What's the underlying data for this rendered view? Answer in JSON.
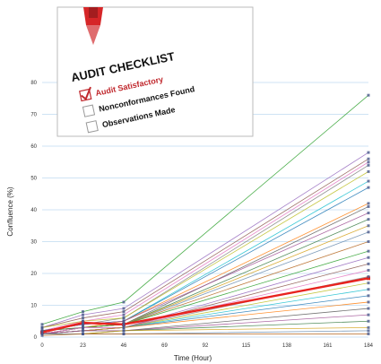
{
  "inset": {
    "title": "AUDIT CHECKLIST",
    "items": [
      {
        "label": "Audit Satisfactory",
        "checked": true,
        "color": "#c0282d"
      },
      {
        "label": "Nonconformances Found",
        "checked": false,
        "color": "#111111"
      },
      {
        "label": "Observations Made",
        "checked": false,
        "color": "#111111"
      }
    ]
  },
  "colors": {
    "highlight": "#e8231f",
    "grid": "#cfe3f4",
    "marker": "#4a5a8c",
    "pen": "#d62628"
  },
  "chart_data": {
    "type": "line",
    "xlabel": "Time (Hour)",
    "ylabel": "Confluence (%)",
    "xlim": [
      0,
      184
    ],
    "ylim": [
      0,
      80
    ],
    "xticks": [
      0,
      23,
      46,
      69,
      92,
      115,
      138,
      161,
      184
    ],
    "yticks": [
      0,
      10,
      20,
      30,
      40,
      50,
      60,
      70,
      80
    ],
    "grid": true,
    "x": [
      0,
      23,
      46,
      184
    ],
    "highlight_series": {
      "values": [
        1.5,
        4.5,
        4,
        18.5
      ]
    },
    "series": [
      {
        "values": [
          4,
          8,
          11,
          76
        ]
      },
      {
        "values": [
          3,
          7,
          9,
          58
        ]
      },
      {
        "values": [
          3,
          6,
          8,
          56
        ]
      },
      {
        "values": [
          2,
          5,
          7,
          55
        ]
      },
      {
        "values": [
          2,
          4,
          6,
          54
        ]
      },
      {
        "values": [
          3,
          5,
          6,
          52
        ]
      },
      {
        "values": [
          2,
          4,
          5,
          49
        ]
      },
      {
        "values": [
          2,
          4,
          5,
          47
        ]
      },
      {
        "values": [
          2,
          3,
          5,
          42
        ]
      },
      {
        "values": [
          2,
          3,
          4,
          41
        ]
      },
      {
        "values": [
          2,
          4,
          5,
          39
        ]
      },
      {
        "values": [
          2,
          3,
          4,
          37
        ]
      },
      {
        "values": [
          1,
          3,
          4,
          35
        ]
      },
      {
        "values": [
          1,
          3,
          4,
          33
        ]
      },
      {
        "values": [
          1,
          3,
          4,
          30
        ]
      },
      {
        "values": [
          1,
          3,
          4,
          27
        ]
      },
      {
        "values": [
          1,
          3,
          3,
          25
        ]
      },
      {
        "values": [
          1,
          2,
          3,
          23
        ]
      },
      {
        "values": [
          1,
          3,
          3,
          21
        ]
      },
      {
        "values": [
          1,
          2,
          3,
          19
        ]
      },
      {
        "values": [
          1,
          2,
          3,
          17
        ]
      },
      {
        "values": [
          1,
          2,
          3,
          15
        ]
      },
      {
        "values": [
          1,
          2,
          3,
          13
        ]
      },
      {
        "values": [
          1,
          2,
          3,
          11
        ]
      },
      {
        "values": [
          1,
          2,
          2,
          9
        ]
      },
      {
        "values": [
          1,
          2,
          2,
          7
        ]
      },
      {
        "values": [
          1,
          1,
          2,
          5
        ]
      },
      {
        "values": [
          1,
          1,
          2,
          3
        ]
      },
      {
        "values": [
          1,
          1,
          1,
          2
        ]
      },
      {
        "values": [
          0.5,
          1,
          1,
          1
        ]
      }
    ]
  }
}
